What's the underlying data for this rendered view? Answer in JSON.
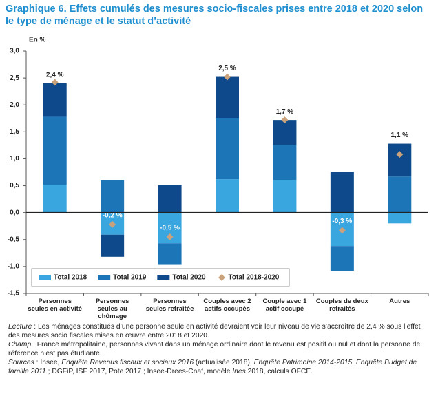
{
  "chart_data": {
    "type": "stacked_bar",
    "title": "Graphique 6. Effets cumulés des mesures socio-fiscales prises entre 2018 et 2020 selon le type de ménage et le statut d’activité",
    "y_label": "En %",
    "categories": [
      "Personnes seules en activité",
      "Personnes seules au chômage",
      "Personnes seules retraitée",
      "Couples avec 2 actifs occupés",
      "Couple avec 1 actif occupé",
      "Couples de deux retraités",
      "Autres"
    ],
    "series": [
      {
        "name": "Total 2018",
        "color": "#3aa6df",
        "values": [
          0.52,
          -0.41,
          -0.57,
          0.62,
          0.6,
          -0.62,
          -0.2
        ]
      },
      {
        "name": "Total 2019",
        "color": "#1b75b7",
        "values": [
          1.26,
          0.6,
          -0.4,
          1.14,
          0.66,
          -0.46,
          0.67
        ]
      },
      {
        "name": "Total 2020",
        "color": "#0e4a8b",
        "values": [
          0.62,
          -0.41,
          0.51,
          0.76,
          0.46,
          0.75,
          0.61
        ]
      }
    ],
    "totals": {
      "name": "Total 2018-2020",
      "color": "#c9a27c",
      "values": [
        2.42,
        -0.22,
        -0.45,
        2.52,
        1.72,
        -0.33,
        1.08
      ],
      "value_labels": [
        "2,4 %",
        "-0,2 %",
        "-0,5 %",
        "2,5 %",
        "1,7 %",
        "-0,3 %",
        "1,1 %"
      ]
    },
    "ylim": [
      -1.5,
      3.0
    ],
    "yticks": [
      {
        "value": 3.0,
        "label": "3,0"
      },
      {
        "value": 2.5,
        "label": "2,5"
      },
      {
        "value": 2.0,
        "label": "2,0"
      },
      {
        "value": 1.5,
        "label": "1,5"
      },
      {
        "value": 1.0,
        "label": "1,0"
      },
      {
        "value": 0.5,
        "label": "0,5"
      },
      {
        "value": 0.0,
        "label": "0,0"
      },
      {
        "value": -0.5,
        "label": "-0,5"
      },
      {
        "value": -1.0,
        "label": "-1,0"
      },
      {
        "value": -1.5,
        "label": "-1,5"
      }
    ],
    "legend": "lower left",
    "notes": [
      {
        "runs": [
          {
            "text": "Lecture",
            "italic": true
          },
          {
            "text": " : Les ménages constitués d’une personne seule en activité devraient voir leur niveau de vie s’accroître de 2,4 % sous l’effet des mesures socio fiscales mises en œuvre entre 2018 et 2020."
          }
        ]
      },
      {
        "runs": [
          {
            "text": "Champ",
            "italic": true
          },
          {
            "text": " : France métropolitaine, personnes vivant dans un ménage ordinaire dont le revenu est positif ou nul et dont la personne de référence n’est pas étudiante."
          }
        ]
      },
      {
        "runs": [
          {
            "text": "Sources",
            "italic": true
          },
          {
            "text": " : Insee, "
          },
          {
            "text": "Enquête Revenus fiscaux et sociaux 2016",
            "italic": true
          },
          {
            "text": " (actualisée 2018), "
          },
          {
            "text": "Enquête Patrimoine 2014-2015",
            "italic": true
          },
          {
            "text": ", "
          },
          {
            "text": "Enquête Budget de famille 2011",
            "italic": true
          },
          {
            "text": " ; DGFiP, ISF 2017, Pote 2017 ; Insee-Drees-Cnaf, modèle "
          },
          {
            "text": "Ines",
            "italic": true
          },
          {
            "text": " 2018, calculs OFCE."
          }
        ]
      }
    ]
  }
}
